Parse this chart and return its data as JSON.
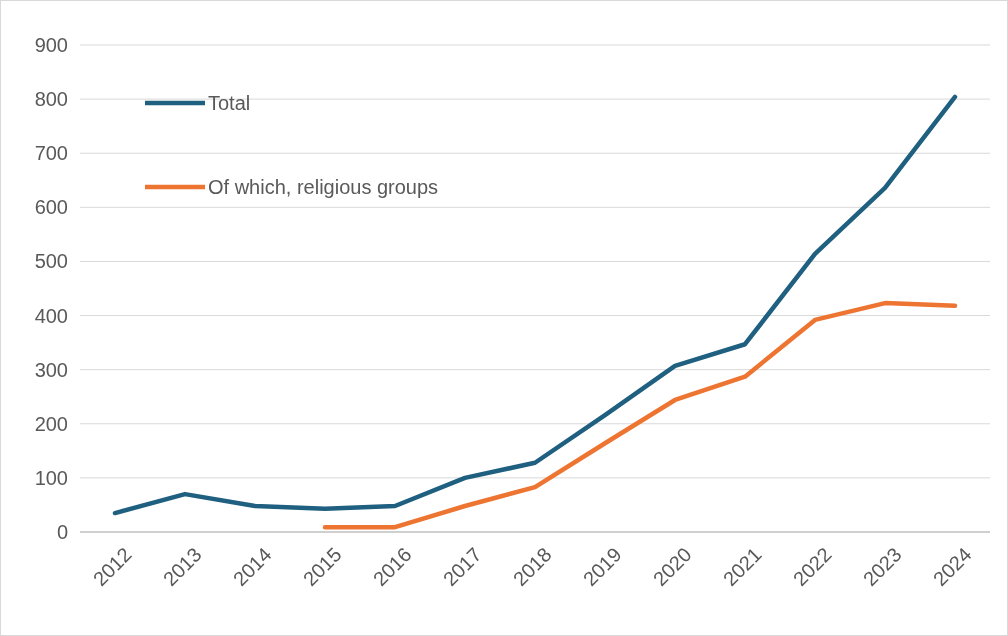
{
  "chart_data": {
    "type": "line",
    "categories": [
      "2012",
      "2013",
      "2014",
      "2015",
      "2016",
      "2017",
      "2018",
      "2019",
      "2020",
      "2021",
      "2022",
      "2023",
      "2024"
    ],
    "series": [
      {
        "name": "Total",
        "color": "#1f5f80",
        "values": [
          35,
          70,
          48,
          43,
          48,
          100,
          128,
          216,
          307,
          347,
          514,
          636,
          804
        ]
      },
      {
        "name": "Of which, religious groups",
        "color": "#ed7431",
        "values": [
          null,
          null,
          null,
          9,
          9,
          48,
          83,
          164,
          244,
          287,
          392,
          423,
          418
        ]
      }
    ],
    "ylim": [
      0,
      900
    ],
    "yticks": [
      0,
      100,
      200,
      300,
      400,
      500,
      600,
      700,
      800,
      900
    ],
    "grid": "y",
    "legend": "top left"
  }
}
